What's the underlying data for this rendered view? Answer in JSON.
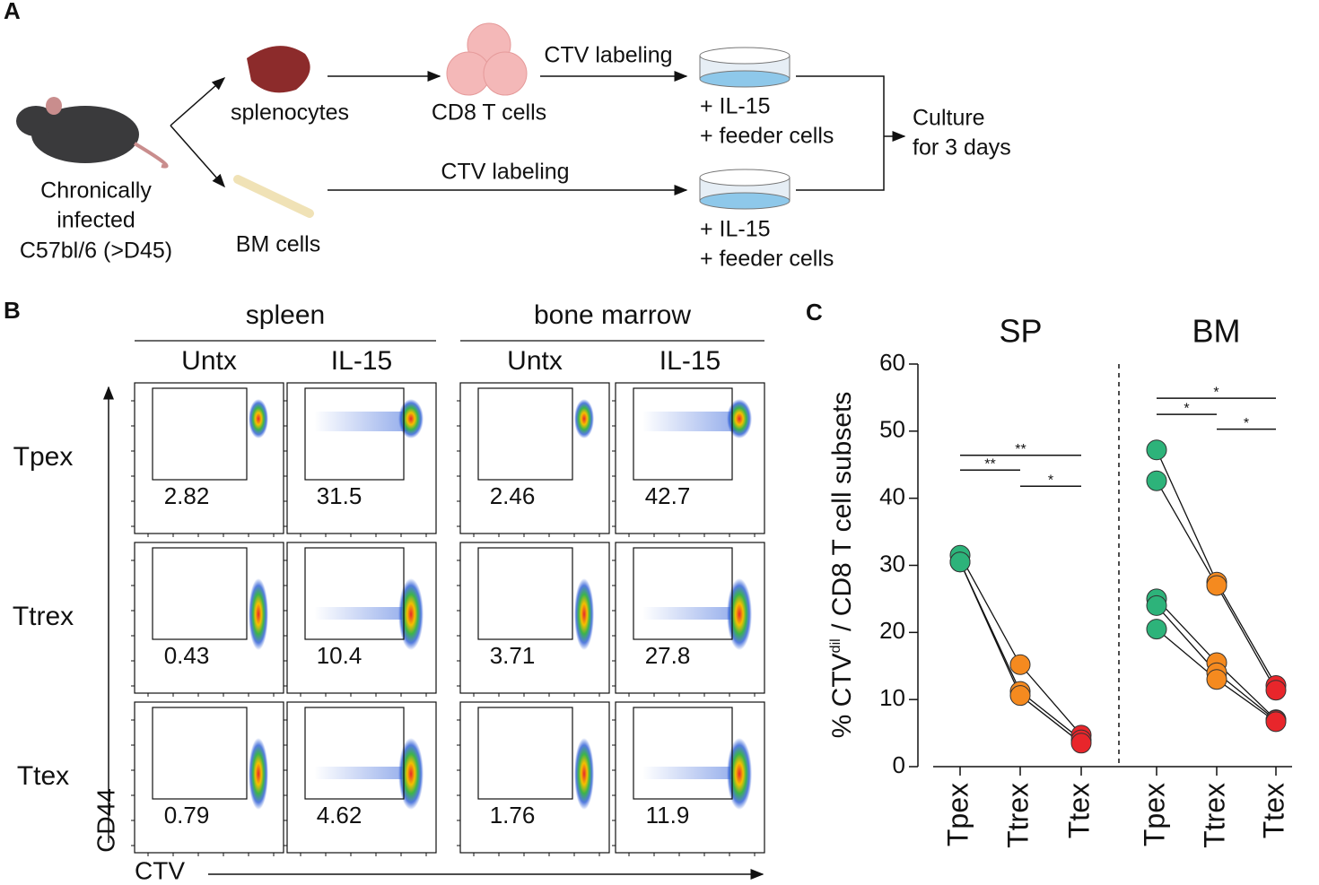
{
  "panel_a": {
    "label": "A",
    "mouse": [
      "Chronically",
      "infected",
      "C57bl/6 (>D45)"
    ],
    "splenocytes": "splenocytes",
    "bm_cells": "BM cells",
    "cd8": "CD8 T cells",
    "ctv_top": "CTV labeling",
    "ctv_bottom": "CTV labeling",
    "dish_top": [
      "+ IL-15",
      "+ feeder cells"
    ],
    "dish_bottom": [
      "+ IL-15",
      "+ feeder cells"
    ],
    "culture": [
      "Culture",
      "for 3 days"
    ]
  },
  "panel_b": {
    "label": "B",
    "groups": [
      {
        "name": "spleen",
        "columns": [
          "Untx",
          "IL-15"
        ]
      },
      {
        "name": "bone marrow",
        "columns": [
          "Untx",
          "IL-15"
        ]
      }
    ],
    "rows": [
      "Tpex",
      "Ttrex",
      "Ttex"
    ],
    "gates": [
      [
        2.82,
        31.5,
        2.46,
        42.7
      ],
      [
        0.43,
        10.4,
        3.71,
        27.8
      ],
      [
        0.79,
        4.62,
        1.76,
        11.9
      ]
    ],
    "y_axis": "CD44",
    "x_axis": "CTV"
  },
  "chart_data": {
    "type": "line",
    "label": "C",
    "ylabel": [
      "% CTV",
      "dil",
      " / CD8 T cell subsets"
    ],
    "categories": [
      "Tpex",
      "Ttrex",
      "Ttex"
    ],
    "colors": [
      "#2db37a",
      "#f58a1f",
      "#e8262b"
    ],
    "ylim": [
      0,
      60
    ],
    "yticks": [
      0,
      10,
      20,
      30,
      40,
      50,
      60
    ],
    "panels": [
      {
        "title": "SP",
        "series": [
          {
            "values": [
              31.5,
              15.2,
              4.7
            ]
          },
          {
            "values": [
              30.5,
              11.2,
              4.0
            ]
          },
          {
            "values": [
              30.5,
              10.6,
              3.5
            ]
          }
        ],
        "significance": [
          {
            "from": 0,
            "to": 2,
            "y": 46.4,
            "label": "**"
          },
          {
            "from": 0,
            "to": 1,
            "y": 44.2,
            "label": "**"
          },
          {
            "from": 1,
            "to": 2,
            "y": 41.8,
            "label": "*"
          }
        ]
      },
      {
        "title": "BM",
        "series": [
          {
            "values": [
              47.2,
              27.5,
              12.1
            ]
          },
          {
            "values": [
              42.6,
              27.0,
              11.4
            ]
          },
          {
            "values": [
              25.0,
              15.5,
              7.0
            ]
          },
          {
            "values": [
              24.0,
              14.0,
              6.9
            ]
          },
          {
            "values": [
              20.5,
              13.0,
              6.7
            ]
          }
        ],
        "significance": [
          {
            "from": 0,
            "to": 2,
            "y": 54.9,
            "label": "*"
          },
          {
            "from": 0,
            "to": 1,
            "y": 52.5,
            "label": "*"
          },
          {
            "from": 1,
            "to": 2,
            "y": 50.3,
            "label": "*"
          }
        ]
      }
    ]
  }
}
